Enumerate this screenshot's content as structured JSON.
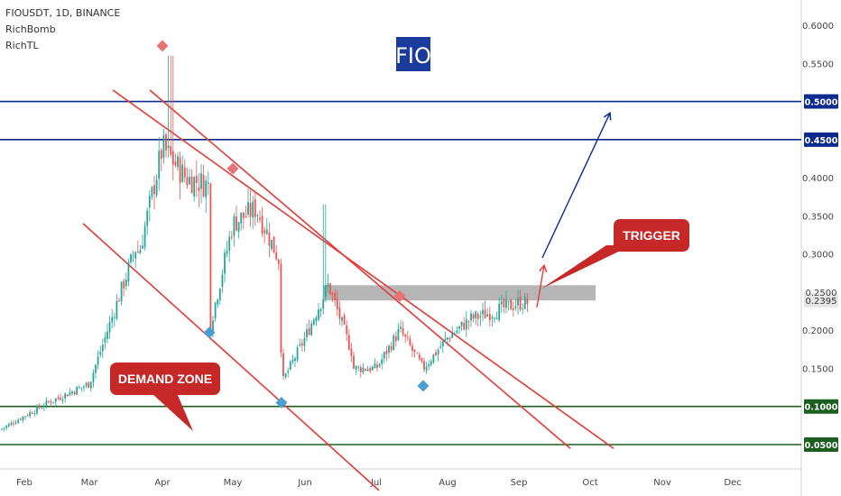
{
  "header": {
    "symbol_line": "FIOUSDT, 1D, BINANCE",
    "indicators": [
      "RichBomb",
      "RichTL"
    ]
  },
  "watermark": "FIO",
  "annotations": {
    "demand_zone": "DEMAND ZONE",
    "trigger": "TRIGGER"
  },
  "colors": {
    "up_candle": "#26a69a",
    "down_candle": "#ef5350",
    "channel_line": "#e53935",
    "resistance_line": "#0d2b8f",
    "support_line": "#1b5e20",
    "zone_fill": "#9e9e9e",
    "callout_fill": "#c62828",
    "marker_red": "#e57373",
    "marker_blue": "#4a9fd0",
    "watermark_bg": "#1a3a9c"
  },
  "chart_data": {
    "type": "candlestick",
    "symbol": "FIOUSDT",
    "timeframe": "1D",
    "exchange": "BINANCE",
    "ylim": [
      0.028,
      0.626
    ],
    "y_ticks": [
      "0.6000",
      "0.5500",
      "0.5000",
      "0.4500",
      "0.4000",
      "0.3500",
      "0.3000",
      "0.2500",
      "0.2000",
      "0.1500",
      "0.1000",
      "0.0500"
    ],
    "x_ticks": [
      "Feb",
      "Mar",
      "Apr",
      "May",
      "Jun",
      "Jul",
      "Aug",
      "Sep",
      "Oct",
      "Nov",
      "Dec"
    ],
    "last_price": "0.2395",
    "horizontal_levels": [
      {
        "value": 0.5,
        "label": "0.5000",
        "color": "#0d2b8f"
      },
      {
        "value": 0.45,
        "label": "0.4500",
        "color": "#0d2b8f"
      },
      {
        "value": 0.1,
        "label": "0.1000",
        "color": "#1b5e20"
      },
      {
        "value": 0.05,
        "label": "0.0500",
        "color": "#1b5e20"
      }
    ],
    "resistance_zone": {
      "top": 0.259,
      "bottom": 0.239,
      "from_month": "Jun",
      "to_month": "Sep+"
    },
    "channel": {
      "upper": [
        [
          "Mar+",
          0.515
        ],
        [
          "Oct+",
          0.045
        ]
      ],
      "lower": [
        [
          "Mar",
          0.34
        ],
        [
          "Jul",
          -0.01
        ]
      ]
    },
    "candle_keyframes": [
      [
        "Feb-",
        0.07
      ],
      [
        "Feb+",
        0.105
      ],
      [
        "Mar",
        0.13
      ],
      [
        "Mar+",
        0.22
      ],
      [
        "Mar++",
        0.31
      ],
      [
        "Apr-",
        0.3
      ],
      [
        "Apr",
        0.44
      ],
      [
        "Apr+",
        0.4
      ],
      [
        "Apr++",
        0.39
      ],
      [
        "May-",
        0.2
      ],
      [
        "May",
        0.34
      ],
      [
        "May+",
        0.36
      ],
      [
        "May++",
        0.29
      ],
      [
        "Jun-",
        0.13
      ],
      [
        "Jun",
        0.19
      ],
      [
        "Jun+",
        0.26
      ],
      [
        "Jun++",
        0.17
      ],
      [
        "Jul-",
        0.15
      ],
      [
        "Jul",
        0.15
      ],
      [
        "Jul+",
        0.2
      ],
      [
        "Jul++",
        0.15
      ],
      [
        "Aug",
        0.19
      ],
      [
        "Aug+",
        0.215
      ],
      [
        "Sep-",
        0.225
      ],
      [
        "Sep",
        0.236
      ]
    ],
    "markers": [
      {
        "shape": "diamond",
        "color": "red",
        "month": "Apr",
        "value": 0.573
      },
      {
        "shape": "diamond",
        "color": "red",
        "month": "May",
        "value": 0.412
      },
      {
        "shape": "diamond",
        "color": "red",
        "month": "Jul+",
        "value": 0.245
      },
      {
        "shape": "diamond",
        "color": "blue",
        "month": "May-",
        "value": 0.197
      },
      {
        "shape": "diamond",
        "color": "blue",
        "month": "Jun-",
        "value": 0.105
      },
      {
        "shape": "diamond",
        "color": "blue",
        "month": "Jul++",
        "value": 0.127
      }
    ],
    "projection_arrows": [
      {
        "color": "#0d2b8f",
        "from": [
          "Sep+",
          0.295
        ],
        "to": [
          "Oct-",
          0.485
        ]
      },
      {
        "color": "#e53935",
        "from": [
          "Sep+",
          0.23
        ],
        "to": [
          "Sep+",
          0.285
        ]
      }
    ]
  }
}
